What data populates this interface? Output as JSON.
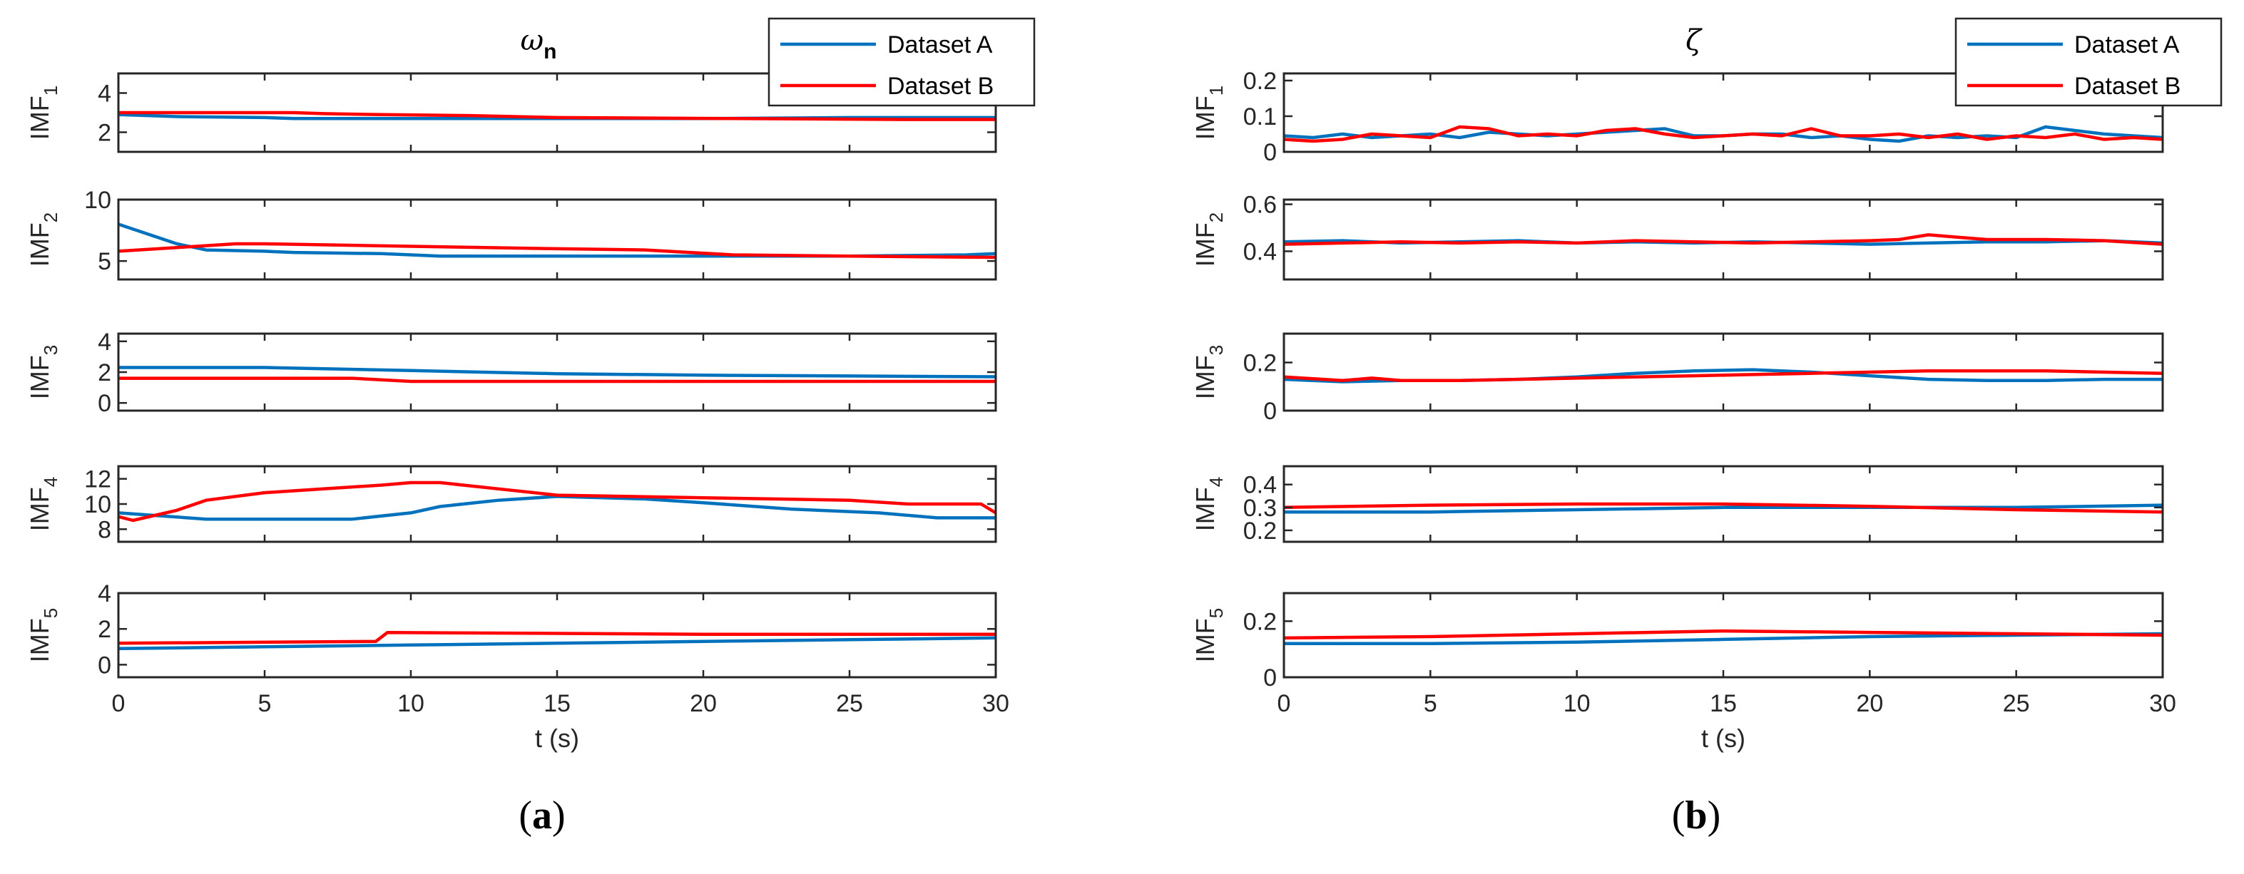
{
  "chart_data": [
    {
      "panel": "(a)",
      "panel_letter": "a",
      "type": "line",
      "title": "ω",
      "title_subscript": "n",
      "xlabel": "t (s)",
      "xlim": [
        0,
        30
      ],
      "xticks": [
        0,
        5,
        10,
        15,
        20,
        25,
        30
      ],
      "legend": {
        "placement": "top-right",
        "entries": [
          "Dataset A",
          "Dataset B"
        ]
      },
      "colors": {
        "Dataset A": "#0072BD",
        "Dataset B": "#FF0000"
      },
      "subplots": [
        {
          "ylabel": "IMF",
          "ylabel_sub": "1",
          "ylim": [
            1,
            5
          ],
          "yticks": [
            2,
            4
          ],
          "series": [
            {
              "name": "Dataset A",
              "x": [
                0,
                2,
                5,
                6,
                10,
                15,
                16,
                20,
                25,
                30
              ],
              "y": [
                2.9,
                2.8,
                2.75,
                2.7,
                2.7,
                2.7,
                2.7,
                2.7,
                2.75,
                2.75
              ]
            },
            {
              "name": "Dataset B",
              "x": [
                0,
                6,
                7,
                9,
                12,
                15,
                21,
                27,
                30
              ],
              "y": [
                3.0,
                3.0,
                2.95,
                2.9,
                2.85,
                2.75,
                2.7,
                2.65,
                2.65
              ]
            }
          ]
        },
        {
          "ylabel": "IMF",
          "ylabel_sub": "2",
          "ylim": [
            3.5,
            10
          ],
          "yticks": [
            5,
            10
          ],
          "series": [
            {
              "name": "Dataset A",
              "x": [
                0,
                1,
                2,
                3,
                5,
                6,
                9,
                11,
                15,
                20,
                25,
                29,
                30
              ],
              "y": [
                8.0,
                7.2,
                6.4,
                5.9,
                5.8,
                5.7,
                5.6,
                5.4,
                5.4,
                5.4,
                5.4,
                5.5,
                5.6
              ]
            },
            {
              "name": "Dataset B",
              "x": [
                0,
                2,
                4,
                5,
                10,
                15,
                18,
                21,
                25,
                30
              ],
              "y": [
                5.8,
                6.1,
                6.4,
                6.4,
                6.2,
                6.0,
                5.9,
                5.5,
                5.4,
                5.3
              ]
            }
          ]
        },
        {
          "ylabel": "IMF",
          "ylabel_sub": "3",
          "ylim": [
            -0.5,
            4.5
          ],
          "yticks": [
            0,
            2,
            4
          ],
          "series": [
            {
              "name": "Dataset A",
              "x": [
                0,
                5,
                10,
                15,
                20,
                25,
                30
              ],
              "y": [
                2.3,
                2.3,
                2.1,
                1.9,
                1.8,
                1.75,
                1.7
              ]
            },
            {
              "name": "Dataset B",
              "x": [
                0,
                5,
                8,
                10,
                15,
                20,
                25,
                30
              ],
              "y": [
                1.6,
                1.6,
                1.6,
                1.4,
                1.4,
                1.4,
                1.4,
                1.4
              ]
            }
          ]
        },
        {
          "ylabel": "IMF",
          "ylabel_sub": "4",
          "ylim": [
            7,
            13
          ],
          "yticks": [
            8,
            10,
            12
          ],
          "series": [
            {
              "name": "Dataset A",
              "x": [
                0,
                3,
                5,
                8,
                10,
                11,
                13,
                15,
                18,
                20,
                23,
                26,
                28,
                30
              ],
              "y": [
                9.3,
                8.8,
                8.8,
                8.8,
                9.3,
                9.8,
                10.3,
                10.6,
                10.4,
                10.1,
                9.6,
                9.3,
                8.9,
                8.9
              ]
            },
            {
              "name": "Dataset B",
              "x": [
                0,
                0.5,
                2,
                3,
                5,
                7,
                9,
                10,
                11,
                13,
                15,
                20,
                25,
                27,
                29.5,
                30
              ],
              "y": [
                9.0,
                8.7,
                9.5,
                10.3,
                10.9,
                11.2,
                11.5,
                11.7,
                11.7,
                11.2,
                10.7,
                10.5,
                10.3,
                10.0,
                10.0,
                9.3
              ]
            }
          ]
        },
        {
          "ylabel": "IMF",
          "ylabel_sub": "5",
          "ylim": [
            -0.7,
            4
          ],
          "yticks": [
            0,
            2,
            4
          ],
          "series": [
            {
              "name": "Dataset A",
              "x": [
                0,
                5,
                10,
                15,
                20,
                25,
                30
              ],
              "y": [
                0.9,
                1.0,
                1.1,
                1.2,
                1.3,
                1.4,
                1.5
              ]
            },
            {
              "name": "Dataset B",
              "x": [
                0,
                8.8,
                9.2,
                15,
                20,
                25,
                30
              ],
              "y": [
                1.2,
                1.3,
                1.8,
                1.75,
                1.7,
                1.7,
                1.7
              ]
            }
          ]
        }
      ]
    },
    {
      "panel": "(b)",
      "panel_letter": "b",
      "type": "line",
      "title": "ζ",
      "title_subscript": "",
      "xlabel": "t (s)",
      "xlim": [
        0,
        30
      ],
      "xticks": [
        0,
        5,
        10,
        15,
        20,
        25,
        30
      ],
      "legend": {
        "placement": "top-right",
        "entries": [
          "Dataset A",
          "Dataset B"
        ]
      },
      "colors": {
        "Dataset A": "#0072BD",
        "Dataset B": "#FF0000"
      },
      "subplots": [
        {
          "ylabel": "IMF",
          "ylabel_sub": "1",
          "ylim": [
            0,
            0.22
          ],
          "yticks": [
            0,
            0.1,
            0.2
          ],
          "series": [
            {
              "name": "Dataset A",
              "x": [
                0,
                1,
                2,
                3,
                4,
                5,
                6,
                7,
                8,
                9,
                10,
                11,
                12,
                13,
                14,
                15,
                16,
                17,
                18,
                19,
                20,
                21,
                22,
                23,
                24,
                25,
                26,
                27,
                28,
                29,
                30
              ],
              "y": [
                0.045,
                0.04,
                0.05,
                0.04,
                0.045,
                0.05,
                0.04,
                0.055,
                0.05,
                0.045,
                0.05,
                0.055,
                0.06,
                0.065,
                0.045,
                0.045,
                0.05,
                0.05,
                0.04,
                0.045,
                0.035,
                0.03,
                0.045,
                0.04,
                0.045,
                0.04,
                0.07,
                0.06,
                0.05,
                0.045,
                0.04
              ]
            },
            {
              "name": "Dataset B",
              "x": [
                0,
                1,
                2,
                3,
                4,
                5,
                6,
                7,
                8,
                9,
                10,
                11,
                12,
                13,
                14,
                15,
                16,
                17,
                18,
                19,
                20,
                21,
                22,
                23,
                24,
                25,
                26,
                27,
                28,
                29,
                30
              ],
              "y": [
                0.035,
                0.03,
                0.035,
                0.05,
                0.045,
                0.04,
                0.07,
                0.065,
                0.045,
                0.05,
                0.045,
                0.06,
                0.065,
                0.05,
                0.04,
                0.045,
                0.05,
                0.045,
                0.065,
                0.045,
                0.045,
                0.05,
                0.04,
                0.05,
                0.035,
                0.045,
                0.04,
                0.05,
                0.035,
                0.04,
                0.035
              ]
            }
          ]
        },
        {
          "ylabel": "IMF",
          "ylabel_sub": "2",
          "ylim": [
            0.28,
            0.62
          ],
          "yticks": [
            0.4,
            0.6
          ],
          "series": [
            {
              "name": "Dataset A",
              "x": [
                0,
                2,
                4,
                6,
                8,
                10,
                12,
                14,
                16,
                18,
                20,
                22,
                24,
                26,
                28,
                30
              ],
              "y": [
                0.44,
                0.445,
                0.435,
                0.44,
                0.445,
                0.435,
                0.44,
                0.435,
                0.44,
                0.435,
                0.43,
                0.435,
                0.44,
                0.44,
                0.445,
                0.435
              ]
            },
            {
              "name": "Dataset B",
              "x": [
                0,
                2,
                4,
                6,
                8,
                10,
                12,
                14,
                16,
                18,
                20,
                21,
                22,
                23,
                24,
                26,
                28,
                30
              ],
              "y": [
                0.43,
                0.435,
                0.44,
                0.435,
                0.44,
                0.435,
                0.445,
                0.44,
                0.435,
                0.44,
                0.445,
                0.45,
                0.47,
                0.46,
                0.45,
                0.45,
                0.445,
                0.43
              ]
            }
          ]
        },
        {
          "ylabel": "IMF",
          "ylabel_sub": "3",
          "ylim": [
            0,
            0.32
          ],
          "yticks": [
            0,
            0.2
          ],
          "series": [
            {
              "name": "Dataset A",
              "x": [
                0,
                2,
                4,
                6,
                8,
                10,
                12,
                14,
                16,
                18,
                20,
                22,
                24,
                26,
                28,
                30
              ],
              "y": [
                0.13,
                0.12,
                0.125,
                0.125,
                0.13,
                0.14,
                0.155,
                0.165,
                0.17,
                0.16,
                0.145,
                0.13,
                0.125,
                0.125,
                0.13,
                0.13
              ]
            },
            {
              "name": "Dataset B",
              "x": [
                0,
                2,
                3,
                4,
                6,
                8,
                10,
                12,
                14,
                16,
                18,
                20,
                22,
                24,
                26,
                28,
                30
              ],
              "y": [
                0.14,
                0.125,
                0.135,
                0.125,
                0.125,
                0.13,
                0.135,
                0.14,
                0.145,
                0.15,
                0.155,
                0.16,
                0.165,
                0.165,
                0.165,
                0.16,
                0.155
              ]
            }
          ]
        },
        {
          "ylabel": "IMF",
          "ylabel_sub": "4",
          "ylim": [
            0.15,
            0.48
          ],
          "yticks": [
            0.2,
            0.3,
            0.4
          ],
          "series": [
            {
              "name": "Dataset A",
              "x": [
                0,
                5,
                10,
                15,
                20,
                25,
                30
              ],
              "y": [
                0.28,
                0.28,
                0.29,
                0.3,
                0.3,
                0.3,
                0.31
              ]
            },
            {
              "name": "Dataset B",
              "x": [
                0,
                5,
                10,
                15,
                20,
                25,
                30
              ],
              "y": [
                0.3,
                0.31,
                0.315,
                0.315,
                0.305,
                0.29,
                0.28
              ]
            }
          ]
        },
        {
          "ylabel": "IMF",
          "ylabel_sub": "5",
          "ylim": [
            0,
            0.3
          ],
          "yticks": [
            0,
            0.2
          ],
          "series": [
            {
              "name": "Dataset A",
              "x": [
                0,
                5,
                10,
                15,
                20,
                25,
                30
              ],
              "y": [
                0.12,
                0.12,
                0.125,
                0.135,
                0.145,
                0.15,
                0.155
              ]
            },
            {
              "name": "Dataset B",
              "x": [
                0,
                5,
                10,
                15,
                20,
                25,
                30
              ],
              "y": [
                0.14,
                0.145,
                0.155,
                0.165,
                0.16,
                0.155,
                0.15
              ]
            }
          ]
        }
      ]
    }
  ]
}
